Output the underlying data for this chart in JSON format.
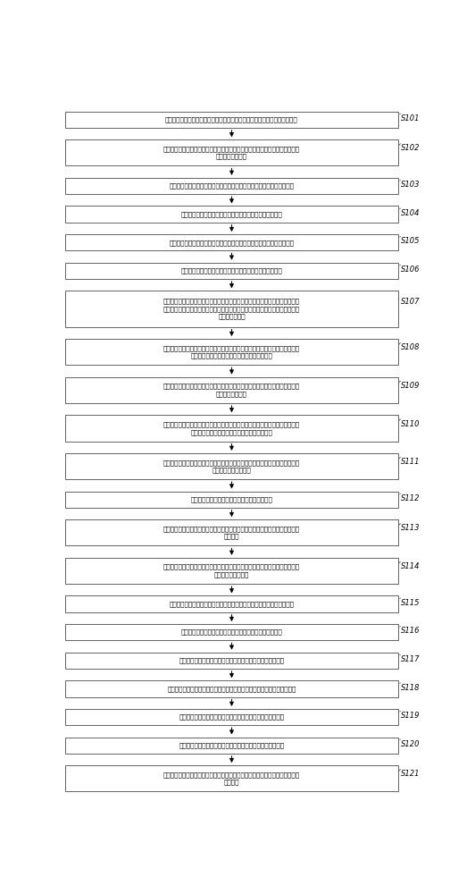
{
  "bg_color": "#ffffff",
  "box_color": "#ffffff",
  "box_edge_color": "#4a4a4a",
  "arrow_color": "#000000",
  "text_color": "#000000",
  "label_color": "#000000",
  "steps": [
    {
      "id": "S101",
      "text": "根据预设时间长度和预设采样频率，对电力信号进行采样，生成采样数据序列",
      "lines": 1
    },
    {
      "id": "S102",
      "text": "对所述采样数据序列的基波频率进行初测，获得初步基波频率，并以所述初步基\n波频率为参考频率",
      "lines": 2
    },
    {
      "id": "S103",
      "text": "将所述参考频率的余弦函数与所述采样数据序列相乘，生成实数向量序列",
      "lines": 1
    },
    {
      "id": "S104",
      "text": "对所述实数向量序列进行数字滤波，生成实数向量滤波序列",
      "lines": 1
    },
    {
      "id": "S105",
      "text": "将所述参考频率的正弦函数与所述采样数据序列相乘，生成虚数向量序列",
      "lines": 1
    },
    {
      "id": "S106",
      "text": "对所述虚数向量序列进行数字滤波，生成虚数向量滤波序列",
      "lines": 1
    },
    {
      "id": "S107",
      "text": "分别将所述实数向量滤波序列和所述虚数向量滤波序列等分为两段序列，生成实\n数向量滤波前段序列、实数向量滤波后段序列、虚数向量滤波前段序列和虚数向\n量滤波后段序列",
      "lines": 3
    },
    {
      "id": "S108",
      "text": "对所述实数向量滤波前段序列和所述虚数向量滤波前段序列分别进行积分运算，\n生成前段序列实数积分值和前段序列虚数积分值",
      "lines": 2
    },
    {
      "id": "S109",
      "text": "根据预设的相位转换规则，将所述前段序列实数积分值与所述前段序列虚数积分\n值转换为第一相位",
      "lines": 2
    },
    {
      "id": "S110",
      "text": "对所述实数向量滤波后段序列和所述虚数向量滤波后段序列分别进行积分运算，\n生成后段序列实数积分值和后段序列虚数积分值",
      "lines": 2
    },
    {
      "id": "S111",
      "text": "根据所述预设的相位转换规则，将所述后段序列实数积分值和所述后段序列虚数\n积分值转换为第二相位",
      "lines": 2
    },
    {
      "id": "S112",
      "text": "将所述第二相位减去所述第一相位，生成相位差",
      "lines": 1
    },
    {
      "id": "S113",
      "text": "根据预设的频率转换规则，将所述相位差和所述参考频率转换为所述电力信号的\n基波频率",
      "lines": 2
    },
    {
      "id": "S114",
      "text": "获取所述基波频率与所述电力信号的谐波因数的乘积，生成谐波频率，并以所述\n谐波频率为参考频率",
      "lines": 2
    },
    {
      "id": "S115",
      "text": "将所述参考频率的余弦函数与所述采样数据序列相乘，生成实数向量序列",
      "lines": 1
    },
    {
      "id": "S116",
      "text": "对所述实数向量序列进行数字滤波，生成实数向量滤波序列",
      "lines": 1
    },
    {
      "id": "S117",
      "text": "对所述实数向量滤波序列进行积分运算，生成实数向量积分值",
      "lines": 1
    },
    {
      "id": "S118",
      "text": "将所述参考频率的正弦函数与所述采样数据序列相乘，获得虚数向量值序列",
      "lines": 1
    },
    {
      "id": "S119",
      "text": "对所述虚数向量值序列进行数字滤波，生成虚数向量滤波序列",
      "lines": 1
    },
    {
      "id": "S120",
      "text": "对所述虚数向量滤波序列进行积分运算，生成虚数向量积分值",
      "lines": 1
    },
    {
      "id": "S121",
      "text": "根据预设的相位转换规则，将所述实数向量积分值和所述虚数向量积分值转换为\n谐波相位",
      "lines": 2
    }
  ]
}
